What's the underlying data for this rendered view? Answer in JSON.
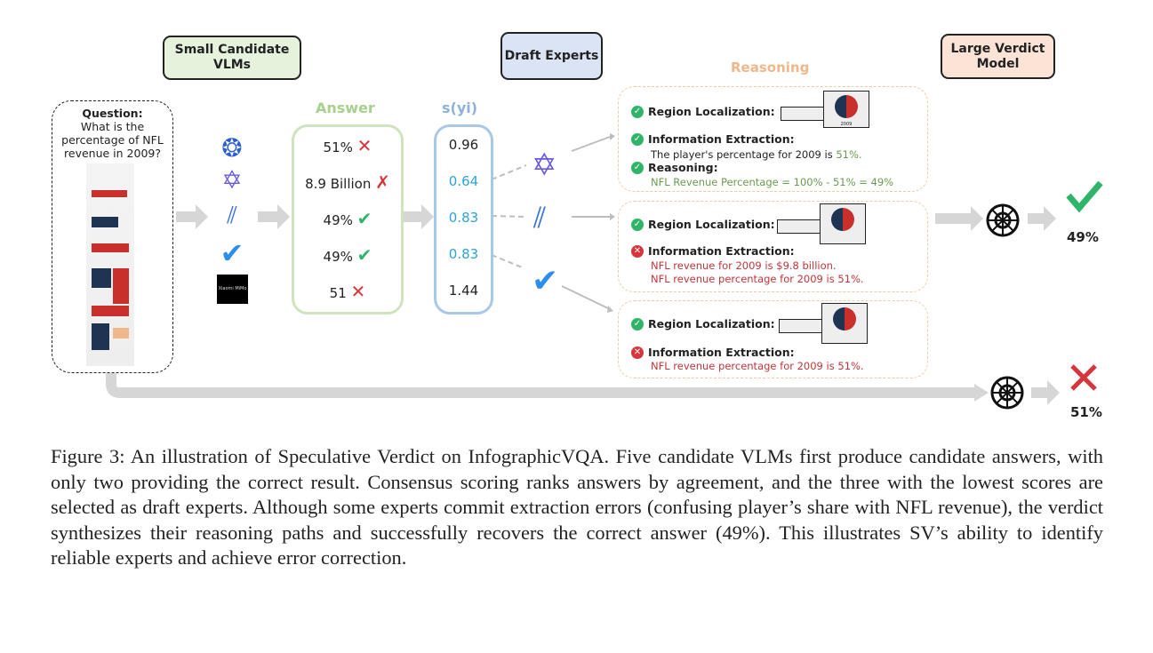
{
  "headers": {
    "small": "Small Candidate VLMs",
    "draft": "Draft Experts",
    "large": "Large Verdict Model",
    "reasoning": "Reasoning"
  },
  "question": {
    "label": "Question:",
    "text": "What is the percentage of NFL revenue in 2009?"
  },
  "models": [
    "vlm-logo-1",
    "qwen-logo",
    "glm-logo",
    "v-logo",
    "Xiaomi MiMo"
  ],
  "answer": {
    "label": "Answer",
    "rows": [
      {
        "value": "51%",
        "mark": "cross"
      },
      {
        "value": "8.9 Billion",
        "mark": "cross"
      },
      {
        "value": "49%",
        "mark": "check"
      },
      {
        "value": "49%",
        "mark": "check"
      },
      {
        "value": "51",
        "mark": "cross"
      }
    ]
  },
  "scores": {
    "label": "s(yi)",
    "rows": [
      "0.96",
      "0.64",
      "0.83",
      "0.83",
      "1.44"
    ],
    "selected": [
      1,
      2,
      3
    ]
  },
  "reasoning": [
    {
      "items": [
        {
          "status": "ok",
          "title": "Region Localization:"
        },
        {
          "status": "ok",
          "title": "Information Extraction:",
          "lines": [
            {
              "pre": "The player's percentage for 2009 is ",
              "hl": "51%."
            }
          ]
        },
        {
          "status": "ok",
          "title": "Reasoning:",
          "lines": [
            {
              "pre": "",
              "hl": "NFL Revenue Percentage = 100% - 51% = 49%"
            }
          ]
        }
      ]
    },
    {
      "items": [
        {
          "status": "ok",
          "title": "Region Localization:"
        },
        {
          "status": "bad",
          "title": "Information Extraction:",
          "lines": [
            {
              "pre": "",
              "hl": "NFL revenue for 2009 is $9.8 billion."
            },
            {
              "pre": "",
              "hl": "NFL revenue percentage for 2009 is 51%."
            }
          ]
        }
      ]
    },
    {
      "items": [
        {
          "status": "ok",
          "title": "Region Localization:"
        },
        {
          "status": "bad",
          "title": "Information Extraction:",
          "lines": [
            {
              "pre": "",
              "hl": "NFL revenue percentage for 2009 is 51%."
            }
          ]
        }
      ]
    }
  ],
  "thumb": {
    "pct": "51%",
    "year": "2009"
  },
  "verdict": {
    "top": "49%",
    "bottom": "51%"
  },
  "caption": "Figure 3: An illustration of Speculative Verdict on InfographicVQA. Five candidate VLMs first produce candidate answers, with only two providing the correct result. Consensus scoring ranks answers by agreement, and the three with the lowest scores are selected as draft experts. Although some experts commit extraction errors (confusing player’s share with NFL revenue), the verdict synthesizes their reasoning paths and successfully recovers the correct answer (49%). This illustrates SV’s ability to identify reliable experts and achieve error correction.",
  "colors": {
    "green": "#2fb56a",
    "red": "#d7353b",
    "score_blue": "#2ea3d6",
    "answer_green": "#a8d08d",
    "ok_text": "#6b9a4f",
    "bad_text": "#c0353a",
    "reasoning_orange": "#f0b88a"
  }
}
